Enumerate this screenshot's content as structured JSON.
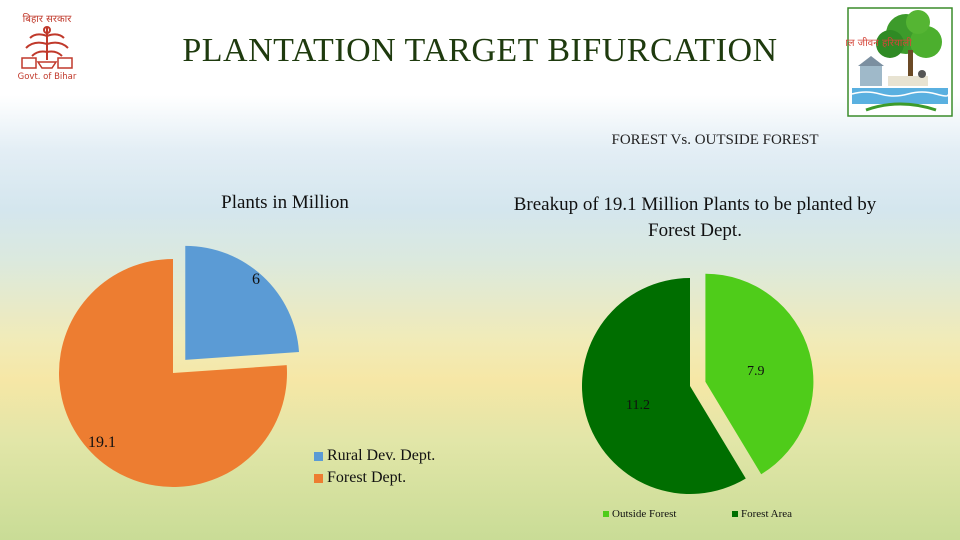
{
  "header": {
    "title": "PLANTATION TARGET BIFURCATION",
    "subtitle": "FOREST Vs. OUTSIDE FOREST"
  },
  "logos": {
    "left": {
      "icon": "govt-of-bihar-seal",
      "top_text": "बिहार सरकार",
      "bottom_text": "Govt. of Bihar",
      "color": "#c0392b"
    },
    "right": {
      "icon": "jal-jeevan-hariyali-logo",
      "text": "जल जीवन हरियाली"
    }
  },
  "colors": {
    "rural": "#5b9bd5",
    "forest_dept": "#ed7d31",
    "outside_forest": "#4fcc1a",
    "forest_area": "#006e00"
  },
  "chart_data": [
    {
      "type": "pie",
      "title": "Plants in Million",
      "categories": [
        "Rural Dev. Dept.",
        "Forest Dept."
      ],
      "values": [
        6,
        19.1
      ],
      "data_labels": [
        "6",
        "19.1"
      ],
      "exploded": "Rural Dev. Dept.",
      "legend": "bottom-right"
    },
    {
      "type": "pie",
      "title": "Breakup of 19.1 Million Plants to be planted by Forest Dept.",
      "categories": [
        "Outside Forest",
        "Forest Area"
      ],
      "values": [
        7.9,
        11.2
      ],
      "data_labels": [
        "7.9",
        "11.2"
      ],
      "exploded": "Outside Forest",
      "legend": "bottom"
    }
  ]
}
